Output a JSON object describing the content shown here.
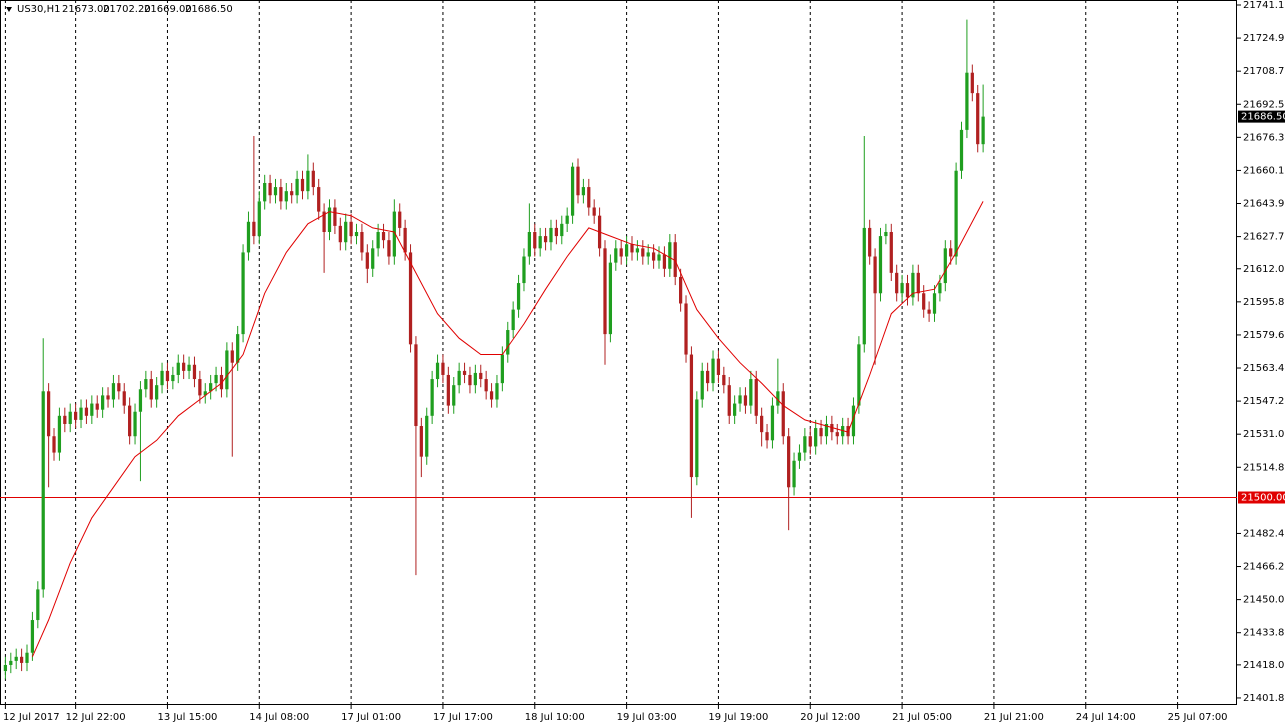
{
  "chart_data": {
    "type": "candlestick",
    "symbol": "US30,H1",
    "header_values": [
      "21673.00",
      "21702.20",
      "21669.00",
      "21686.50"
    ],
    "xlim": [
      -1,
      228
    ],
    "ylim": [
      21398.4,
      21743.6
    ],
    "xticks": [
      {
        "value": 0,
        "label": "12 Jul 2017"
      },
      {
        "value": 13,
        "label": "12 Jul 22:00"
      },
      {
        "value": 30,
        "label": "13 Jul 15:00"
      },
      {
        "value": 47,
        "label": "14 Jul 08:00"
      },
      {
        "value": 64,
        "label": "17 Jul 01:00"
      },
      {
        "value": 81,
        "label": "17 Jul 17:00"
      },
      {
        "value": 98,
        "label": "18 Jul 10:00"
      },
      {
        "value": 115,
        "label": "19 Jul 03:00"
      },
      {
        "value": 132,
        "label": "19 Jul 19:00"
      },
      {
        "value": 149,
        "label": "20 Jul 12:00"
      },
      {
        "value": 166,
        "label": "21 Jul 05:00"
      },
      {
        "value": 183,
        "label": "21 Jul 21:00"
      },
      {
        "value": 200,
        "label": "24 Jul 14:00"
      },
      {
        "value": 217,
        "label": "25 Jul 07:00"
      }
    ],
    "yticks": [
      21741.15,
      21724.95,
      {
        "value": 21708.75,
        "label": "21708.75"
      },
      21692.55,
      21676.35,
      21660.15,
      21643.95,
      21627.75,
      {
        "value": 21612.0,
        "label": "21612.00"
      },
      {
        "value": 21595.8,
        "label": "21595.80"
      },
      {
        "value": 21579.6,
        "label": "21579.60"
      },
      {
        "value": 21563.4,
        "label": "21563.40"
      },
      {
        "value": 21547.2,
        "label": "21547.20"
      },
      {
        "value": 21531.0,
        "label": "21531.00"
      },
      {
        "value": 21514.8,
        "label": "21514.80"
      },
      {
        "value": 21482.4,
        "label": "21482.40"
      },
      {
        "value": 21466.2,
        "label": "21466.20"
      },
      {
        "value": 21450.0,
        "label": "21450.00"
      },
      {
        "value": 21433.8,
        "label": "21433.80"
      },
      21418.05,
      21401.85
    ],
    "up_color": "#1f9e1f",
    "down_color": "#b02020",
    "current_price": {
      "value": 21686.5,
      "label": "21686.50"
    },
    "level": {
      "value": 21500.0,
      "label": "21500.00",
      "color": "#e00000"
    },
    "open": [
      21415,
      21418,
      21420,
      21422,
      21419,
      21424,
      21440,
      21455,
      21552,
      21530,
      21522,
      21540,
      21536,
      21542,
      21538,
      21544,
      21540,
      21546,
      21543,
      21550,
      21548,
      21556,
      21552,
      21545,
      21530,
      21542,
      21553,
      21558,
      21548,
      21555,
      21562,
      21557,
      21560,
      21566,
      21562,
      21565,
      21558,
      21550,
      21552,
      21556,
      21560,
      21553,
      21572,
      21566,
      21580,
      21620,
      21635,
      21628,
      21645,
      21654,
      21648,
      21652,
      21645,
      21650,
      21648,
      21656,
      21650,
      21660,
      21652,
      21640,
      21630,
      21642,
      21633,
      21625,
      21635,
      21628,
      21630,
      21620,
      21612,
      21622,
      21630,
      21626,
      21618,
      21640,
      21632,
      21620,
      21575,
      21535,
      21520,
      21540,
      21558,
      21566,
      21560,
      21545,
      21555,
      21562,
      21560,
      21555,
      21561,
      21558,
      21552,
      21548,
      21556,
      21570,
      21582,
      21592,
      21605,
      21618,
      21630,
      21622,
      21628,
      21625,
      21632,
      21628,
      21634,
      21638,
      21662,
      21648,
      21652,
      21642,
      21638,
      21622,
      21580,
      21615,
      21622,
      21618,
      21624,
      21620,
      21622,
      21618,
      21620,
      21616,
      21619,
      21612,
      21625,
      21608,
      21595,
      21570,
      21510,
      21548,
      21562,
      21556,
      21568,
      21560,
      21555,
      21540,
      21546,
      21550,
      21545,
      21558,
      21540,
      21532,
      21528,
      21545,
      21552,
      21530,
      21505,
      21518,
      21522,
      21530,
      21525,
      21534,
      21530,
      21536,
      21532,
      21530,
      21535,
      21530,
      21545,
      21575,
      21632,
      21618,
      21600,
      21628,
      21630,
      21610,
      21600,
      21605,
      21598,
      21610,
      21600,
      21592,
      21590,
      21600,
      21605,
      21622,
      21618,
      21660,
      21680,
      21708,
      21698,
      21673
    ],
    "high": [
      21422,
      21424,
      21426,
      21426,
      21428,
      21444,
      21459,
      21578,
      21556,
      21534,
      21544,
      21544,
      21546,
      21546,
      21548,
      21548,
      21550,
      21550,
      21554,
      21554,
      21560,
      21560,
      21556,
      21549,
      21546,
      21557,
      21562,
      21562,
      21559,
      21566,
      21566,
      21564,
      21570,
      21570,
      21569,
      21569,
      21562,
      21556,
      21560,
      21564,
      21564,
      21576,
      21576,
      21584,
      21624,
      21640,
      21677,
      21650,
      21658,
      21658,
      21656,
      21656,
      21654,
      21654,
      21660,
      21660,
      21668,
      21664,
      21656,
      21644,
      21646,
      21646,
      21637,
      21639,
      21639,
      21634,
      21634,
      21624,
      21626,
      21634,
      21634,
      21630,
      21646,
      21644,
      21636,
      21624,
      21579,
      21539,
      21544,
      21562,
      21570,
      21570,
      21564,
      21559,
      21566,
      21566,
      21564,
      21565,
      21565,
      21562,
      21556,
      21560,
      21574,
      21586,
      21596,
      21609,
      21622,
      21644,
      21634,
      21632,
      21632,
      21636,
      21636,
      21638,
      21642,
      21664,
      21666,
      21656,
      21656,
      21646,
      21642,
      21626,
      21619,
      21626,
      21626,
      21628,
      21628,
      21626,
      21626,
      21624,
      21624,
      21623,
      21623,
      21629,
      21629,
      21612,
      21599,
      21574,
      21552,
      21566,
      21566,
      21572,
      21572,
      21564,
      21559,
      21550,
      21554,
      21554,
      21562,
      21562,
      21544,
      21536,
      21549,
      21568,
      21556,
      21534,
      21522,
      21526,
      21534,
      21534,
      21538,
      21538,
      21540,
      21540,
      21536,
      21539,
      21539,
      21549,
      21579,
      21677,
      21636,
      21622,
      21632,
      21634,
      21634,
      21614,
      21609,
      21609,
      21614,
      21614,
      21604,
      21596,
      21604,
      21609,
      21626,
      21626,
      21664,
      21684,
      21734,
      21712,
      21702,
      21702.2
    ],
    "low": [
      21411,
      21414,
      21416,
      21415,
      21415,
      21420,
      21436,
      21451,
      21505,
      21518,
      21518,
      21532,
      21532,
      21534,
      21534,
      21536,
      21536,
      21539,
      21539,
      21544,
      21544,
      21548,
      21541,
      21526,
      21526,
      21508,
      21549,
      21544,
      21544,
      21551,
      21553,
      21553,
      21556,
      21558,
      21558,
      21554,
      21546,
      21546,
      21548,
      21552,
      21549,
      21549,
      21520,
      21562,
      21576,
      21616,
      21624,
      21624,
      21641,
      21644,
      21644,
      21641,
      21641,
      21644,
      21644,
      21646,
      21646,
      21648,
      21636,
      21610,
      21626,
      21629,
      21621,
      21621,
      21624,
      21624,
      21616,
      21605,
      21608,
      21618,
      21622,
      21614,
      21614,
      21628,
      21616,
      21571,
      21462,
      21510,
      21516,
      21536,
      21554,
      21556,
      21541,
      21541,
      21551,
      21556,
      21551,
      21551,
      21554,
      21548,
      21544,
      21544,
      21552,
      21566,
      21578,
      21588,
      21601,
      21614,
      21618,
      21618,
      21621,
      21621,
      21624,
      21624,
      21630,
      21634,
      21644,
      21644,
      21638,
      21634,
      21618,
      21565,
      21576,
      21611,
      21614,
      21614,
      21616,
      21616,
      21614,
      21614,
      21612,
      21612,
      21608,
      21608,
      21604,
      21591,
      21566,
      21490,
      21506,
      21544,
      21552,
      21552,
      21556,
      21551,
      21536,
      21536,
      21542,
      21541,
      21541,
      21536,
      21525,
      21524,
      21524,
      21541,
      21526,
      21484,
      21501,
      21514,
      21518,
      21521,
      21521,
      21526,
      21526,
      21528,
      21526,
      21526,
      21526,
      21526,
      21541,
      21571,
      21614,
      21565,
      21596,
      21624,
      21606,
      21596,
      21596,
      21594,
      21594,
      21596,
      21588,
      21586,
      21586,
      21596,
      21601,
      21614,
      21614,
      21656,
      21676,
      21694,
      21669,
      21669
    ],
    "close": [
      21418,
      21420,
      21422,
      21419,
      21424,
      21440,
      21455,
      21552,
      21530,
      21522,
      21540,
      21536,
      21542,
      21538,
      21544,
      21540,
      21546,
      21543,
      21550,
      21548,
      21556,
      21552,
      21545,
      21530,
      21542,
      21553,
      21558,
      21548,
      21555,
      21562,
      21557,
      21560,
      21566,
      21562,
      21565,
      21558,
      21550,
      21552,
      21556,
      21560,
      21553,
      21572,
      21566,
      21580,
      21620,
      21635,
      21628,
      21645,
      21654,
      21648,
      21652,
      21645,
      21650,
      21648,
      21656,
      21650,
      21660,
      21652,
      21640,
      21630,
      21642,
      21633,
      21625,
      21635,
      21628,
      21630,
      21620,
      21612,
      21622,
      21630,
      21626,
      21618,
      21640,
      21632,
      21620,
      21575,
      21535,
      21520,
      21540,
      21558,
      21566,
      21560,
      21545,
      21555,
      21562,
      21560,
      21555,
      21561,
      21558,
      21552,
      21548,
      21556,
      21570,
      21582,
      21592,
      21605,
      21618,
      21630,
      21622,
      21628,
      21625,
      21632,
      21628,
      21634,
      21638,
      21662,
      21648,
      21652,
      21642,
      21638,
      21622,
      21580,
      21615,
      21622,
      21618,
      21624,
      21620,
      21622,
      21618,
      21620,
      21616,
      21619,
      21612,
      21625,
      21608,
      21595,
      21570,
      21510,
      21548,
      21562,
      21556,
      21568,
      21560,
      21555,
      21540,
      21546,
      21550,
      21545,
      21558,
      21540,
      21532,
      21528,
      21545,
      21552,
      21530,
      21505,
      21518,
      21522,
      21530,
      21525,
      21534,
      21530,
      21536,
      21532,
      21530,
      21535,
      21530,
      21545,
      21575,
      21632,
      21618,
      21600,
      21628,
      21630,
      21610,
      21600,
      21605,
      21598,
      21610,
      21600,
      21592,
      21590,
      21600,
      21605,
      21622,
      21618,
      21660,
      21680,
      21708,
      21698,
      21673,
      21686.5
    ],
    "ma": {
      "color": "#e00000",
      "x": [
        5,
        8,
        12,
        16,
        20,
        24,
        28,
        32,
        36,
        40,
        44,
        48,
        52,
        56,
        60,
        64,
        68,
        72,
        76,
        80,
        84,
        88,
        92,
        96,
        100,
        104,
        108,
        112,
        116,
        120,
        124,
        128,
        132,
        136,
        140,
        144,
        148,
        152,
        156,
        160,
        164,
        168,
        172,
        176,
        181
      ],
      "values": [
        21422,
        21440,
        21468,
        21490,
        21505,
        21520,
        21528,
        21540,
        21548,
        21556,
        21570,
        21600,
        21620,
        21634,
        21640,
        21638,
        21632,
        21630,
        21610,
        21590,
        21578,
        21570,
        21570,
        21585,
        21602,
        21618,
        21632,
        21628,
        21624,
        21622,
        21616,
        21592,
        21578,
        21566,
        21556,
        21545,
        21538,
        21535,
        21532,
        21560,
        21590,
        21600,
        21602,
        21620,
        21645
      ]
    }
  }
}
